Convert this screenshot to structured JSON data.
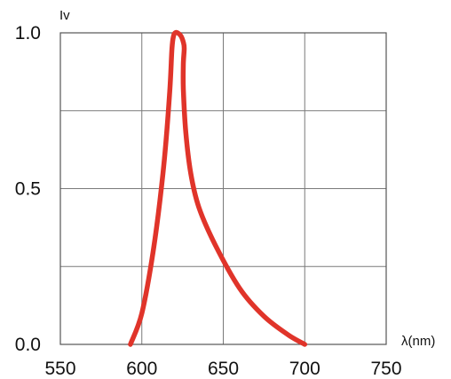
{
  "chart_data": {
    "type": "line",
    "ylabel": "Iv",
    "xlabel": "λ(nm)",
    "xlim": [
      550,
      750
    ],
    "ylim": [
      0,
      1
    ],
    "x_ticks": [
      550,
      600,
      650,
      700,
      750
    ],
    "x_tick_labels": [
      "550",
      "600",
      "650",
      "700",
      "750"
    ],
    "y_tick_labels": [
      {
        "value": 0,
        "label": "0.0"
      },
      {
        "value": 0.5,
        "label": "0.5"
      },
      {
        "value": 1,
        "label": "1.0"
      }
    ],
    "grid": true,
    "grid_y": [
      0,
      0.25,
      0.5,
      0.75,
      1.0
    ],
    "series": [
      {
        "color": "#e0342a",
        "x": [
          593,
          600,
          607,
          613,
          617,
          618.5,
          619.5,
          620.5,
          622,
          624,
          625.5,
          626,
          625.5,
          625.5,
          627,
          630,
          635,
          645,
          660,
          675,
          690,
          700
        ],
        "y": [
          0,
          0.1,
          0.3,
          0.55,
          0.8,
          0.95,
          0.99,
          1.0,
          1.0,
          0.99,
          0.97,
          0.95,
          0.9,
          0.82,
          0.68,
          0.55,
          0.44,
          0.32,
          0.18,
          0.09,
          0.03,
          0
        ]
      }
    ]
  }
}
